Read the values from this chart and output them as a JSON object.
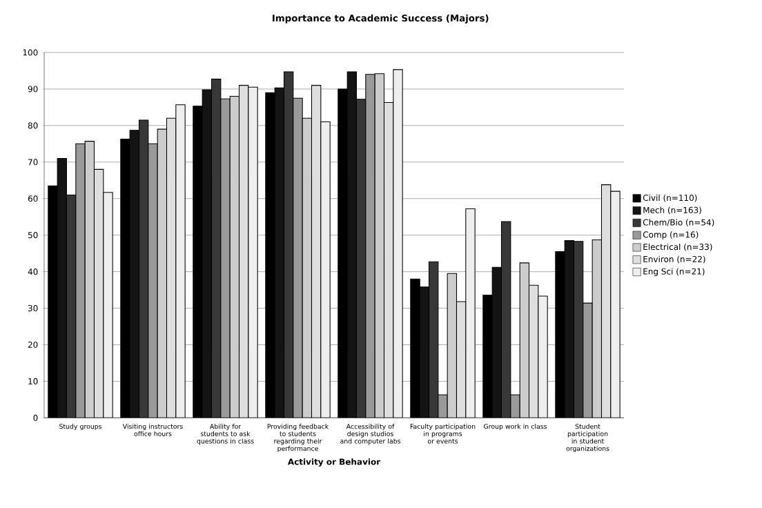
{
  "chart_data": {
    "type": "bar",
    "title": "**Importance to Academic Success (Majors)**",
    "xlabel": "**Activity or Behavior**",
    "categories": [
      "Study groups",
      "Visiting instructors office hours",
      "Ability for students to ask questions in class",
      "Providing feedback to students regarding their performance",
      "Accessibility of design studios and computer labs",
      "Faculty participation in programs or events",
      "Group work in class",
      "Student participation in student organizations"
    ],
    "series": [
      {
        "name": "Civil (n=110)",
        "color": "#000000",
        "values": [
          63.5,
          76.3,
          85.3,
          89,
          90,
          38,
          33.6,
          45.5
        ]
      },
      {
        "name": "Mech (n=163)",
        "color": "#141414",
        "values": [
          71,
          78.7,
          89.8,
          90.3,
          94.7,
          35.8,
          41.2,
          48.5
        ]
      },
      {
        "name": "Chem/Bio (n=54)",
        "color": "#383838",
        "values": [
          61,
          81.5,
          92.7,
          94.7,
          87.2,
          42.7,
          53.7,
          48.3
        ]
      },
      {
        "name": "Comp (n=16)",
        "color": "#9a9a9a",
        "values": [
          75,
          75,
          87.3,
          87.5,
          94,
          6.3,
          6.3,
          31.4
        ]
      },
      {
        "name": "Electrical (n=33)",
        "color": "#cccccc",
        "values": [
          75.7,
          79,
          88,
          82,
          94.2,
          39.5,
          42.4,
          48.7
        ]
      },
      {
        "name": "Environ (n=22)",
        "color": "#dedede",
        "values": [
          68,
          82,
          91,
          91,
          86.3,
          31.8,
          36.3,
          63.8
        ]
      },
      {
        "name": "Eng Sci (n=21)",
        "color": "#eeeeee",
        "values": [
          61.7,
          85.7,
          90.5,
          81,
          95.3,
          57.2,
          33.3,
          62
        ]
      }
    ],
    "ylim": [
      0,
      100
    ],
    "yticks": [
      0,
      10,
      20,
      30,
      40,
      50,
      60,
      70,
      80,
      90,
      100
    ],
    "grid": "y",
    "legend": "right"
  }
}
